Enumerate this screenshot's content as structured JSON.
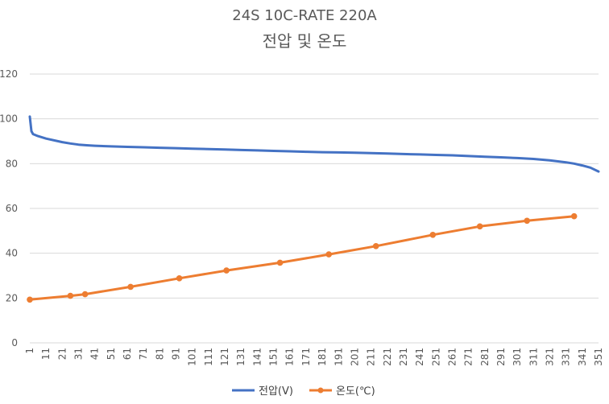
{
  "chart_data": {
    "type": "line",
    "title": "24S 10C-RATE 220A",
    "subtitle": "전압 및 온도",
    "xlabel": "",
    "ylabel": "",
    "ylim": [
      0,
      120
    ],
    "yticks": [
      0,
      20,
      40,
      60,
      80,
      100,
      120
    ],
    "x_tick_labels": [
      "1",
      "11",
      "21",
      "31",
      "41",
      "51",
      "61",
      "71",
      "81",
      "91",
      "101",
      "111",
      "121",
      "131",
      "141",
      "151",
      "161",
      "171",
      "181",
      "191",
      "201",
      "211",
      "221",
      "231",
      "241",
      "251",
      "261",
      "271",
      "281",
      "291",
      "301",
      "311",
      "321",
      "331",
      "341",
      "351"
    ],
    "x_range": [
      1,
      351
    ],
    "grid": true,
    "legend_position": "bottom",
    "series": [
      {
        "name": "전압(V)",
        "color": "#4472C4",
        "markers": false,
        "points": [
          [
            1,
            101
          ],
          [
            2,
            94.5
          ],
          [
            3,
            93.2
          ],
          [
            6,
            92.3
          ],
          [
            11,
            91.2
          ],
          [
            21,
            89.6
          ],
          [
            26,
            89
          ],
          [
            31,
            88.5
          ],
          [
            36,
            88.2
          ],
          [
            41,
            88
          ],
          [
            51,
            87.7
          ],
          [
            61,
            87.5
          ],
          [
            71,
            87.3
          ],
          [
            81,
            87.1
          ],
          [
            91,
            86.9
          ],
          [
            101,
            86.7
          ],
          [
            111,
            86.5
          ],
          [
            121,
            86.3
          ],
          [
            131,
            86.1
          ],
          [
            141,
            85.9
          ],
          [
            151,
            85.7
          ],
          [
            161,
            85.5
          ],
          [
            171,
            85.3
          ],
          [
            181,
            85.1
          ],
          [
            191,
            85
          ],
          [
            201,
            84.9
          ],
          [
            211,
            84.7
          ],
          [
            221,
            84.5
          ],
          [
            231,
            84.3
          ],
          [
            241,
            84.1
          ],
          [
            251,
            83.9
          ],
          [
            261,
            83.7
          ],
          [
            271,
            83.4
          ],
          [
            281,
            83.1
          ],
          [
            291,
            82.8
          ],
          [
            301,
            82.5
          ],
          [
            311,
            82.1
          ],
          [
            321,
            81.5
          ],
          [
            331,
            80.6
          ],
          [
            336,
            80
          ],
          [
            341,
            79.2
          ],
          [
            346,
            78.2
          ],
          [
            351,
            76.5
          ]
        ]
      },
      {
        "name": "온도(℃)",
        "color": "#ED7D31",
        "markers": true,
        "points": [
          [
            1,
            19.3
          ],
          [
            26,
            21
          ],
          [
            35,
            21.7
          ],
          [
            63,
            25
          ],
          [
            93,
            28.8
          ],
          [
            122,
            32.3
          ],
          [
            155,
            35.8
          ],
          [
            185,
            39.5
          ],
          [
            214,
            43.2
          ],
          [
            249,
            48.2
          ],
          [
            278,
            52
          ],
          [
            307,
            54.5
          ],
          [
            336,
            56.5
          ]
        ]
      }
    ]
  }
}
